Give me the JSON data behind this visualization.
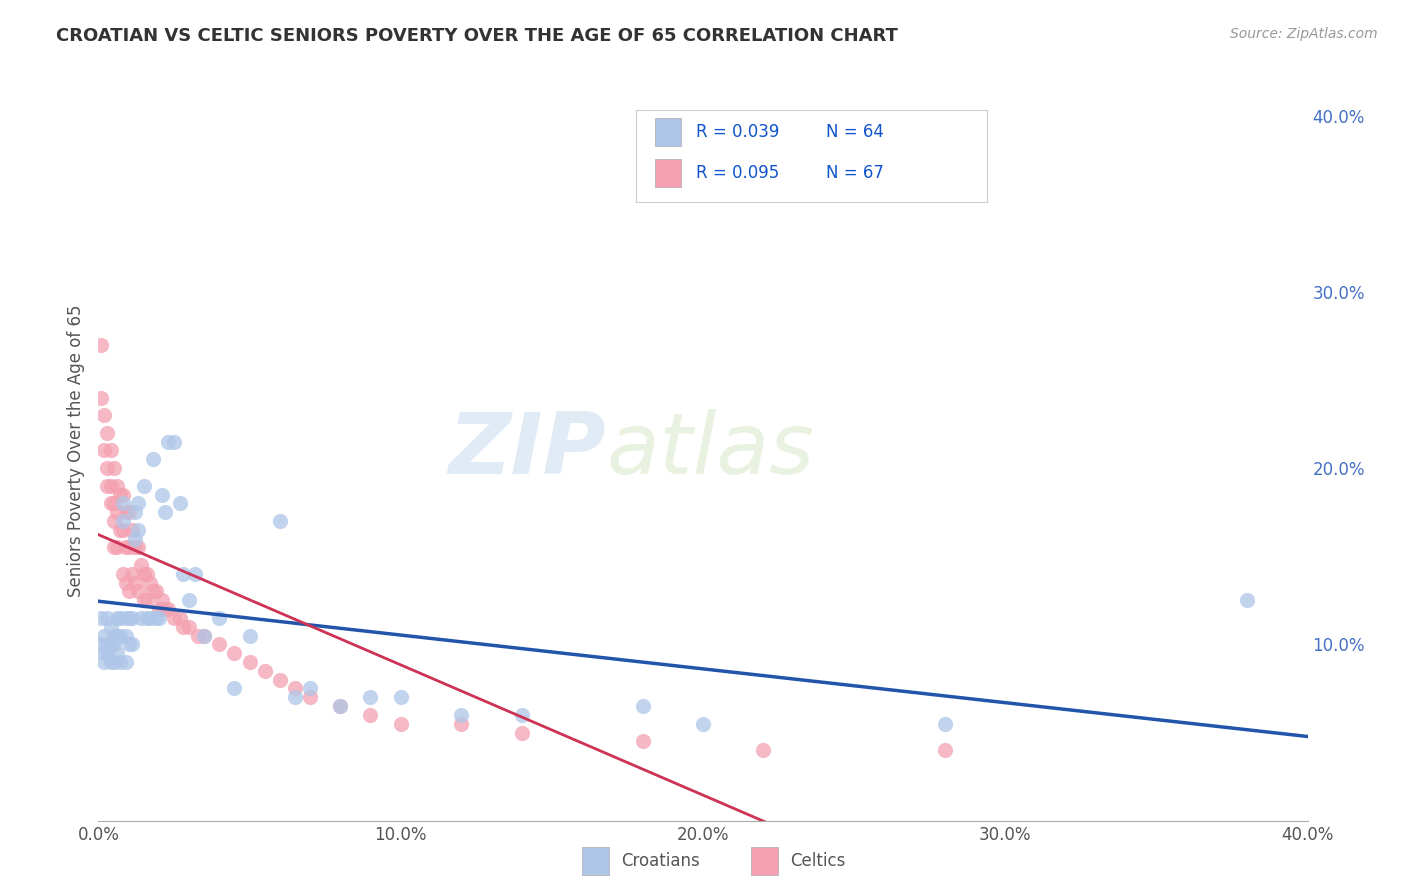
{
  "title": "CROATIAN VS CELTIC SENIORS POVERTY OVER THE AGE OF 65 CORRELATION CHART",
  "ylabel": "Seniors Poverty Over the Age of 65",
  "source_text": "Source: ZipAtlas.com",
  "watermark_zip": "ZIP",
  "watermark_atlas": "atlas",
  "xlim": [
    0.0,
    0.4
  ],
  "ylim": [
    0.0,
    0.42
  ],
  "x_ticks": [
    0.0,
    0.1,
    0.2,
    0.3,
    0.4
  ],
  "x_tick_labels": [
    "0.0%",
    "10.0%",
    "20.0%",
    "30.0%",
    "40.0%"
  ],
  "y_ticks_right": [
    0.1,
    0.2,
    0.3,
    0.4
  ],
  "y_tick_labels_right": [
    "10.0%",
    "20.0%",
    "30.0%",
    "40.0%"
  ],
  "legend_entries": [
    {
      "label_r": "R = 0.039",
      "label_n": "N = 64",
      "color": "#aec6e8"
    },
    {
      "label_r": "R = 0.095",
      "label_n": "N = 67",
      "color": "#f4a0b0"
    }
  ],
  "croatian_color": "#aec6e8",
  "celtic_color": "#f4a0b0",
  "croatian_line_color": "#2255aa",
  "celtic_line_color": "#cc3355",
  "croatian_scatter": {
    "x": [
      0.001,
      0.001,
      0.002,
      0.002,
      0.002,
      0.003,
      0.003,
      0.003,
      0.004,
      0.004,
      0.004,
      0.005,
      0.005,
      0.005,
      0.006,
      0.006,
      0.006,
      0.007,
      0.007,
      0.007,
      0.008,
      0.008,
      0.009,
      0.009,
      0.009,
      0.01,
      0.01,
      0.011,
      0.011,
      0.012,
      0.012,
      0.013,
      0.013,
      0.014,
      0.015,
      0.016,
      0.017,
      0.018,
      0.019,
      0.02,
      0.021,
      0.022,
      0.023,
      0.025,
      0.027,
      0.028,
      0.03,
      0.032,
      0.035,
      0.04,
      0.045,
      0.05,
      0.06,
      0.065,
      0.07,
      0.08,
      0.09,
      0.1,
      0.12,
      0.14,
      0.18,
      0.2,
      0.28,
      0.38
    ],
    "y": [
      0.115,
      0.1,
      0.105,
      0.095,
      0.09,
      0.115,
      0.1,
      0.095,
      0.11,
      0.1,
      0.09,
      0.105,
      0.1,
      0.09,
      0.115,
      0.105,
      0.095,
      0.115,
      0.105,
      0.09,
      0.18,
      0.17,
      0.115,
      0.105,
      0.09,
      0.115,
      0.1,
      0.115,
      0.1,
      0.175,
      0.16,
      0.18,
      0.165,
      0.115,
      0.19,
      0.115,
      0.115,
      0.205,
      0.115,
      0.115,
      0.185,
      0.175,
      0.215,
      0.215,
      0.18,
      0.14,
      0.125,
      0.14,
      0.105,
      0.115,
      0.075,
      0.105,
      0.17,
      0.07,
      0.075,
      0.065,
      0.07,
      0.07,
      0.06,
      0.06,
      0.065,
      0.055,
      0.055,
      0.125
    ]
  },
  "celtic_scatter": {
    "x": [
      0.001,
      0.001,
      0.002,
      0.002,
      0.003,
      0.003,
      0.003,
      0.004,
      0.004,
      0.004,
      0.005,
      0.005,
      0.005,
      0.005,
      0.006,
      0.006,
      0.006,
      0.007,
      0.007,
      0.008,
      0.008,
      0.008,
      0.009,
      0.009,
      0.009,
      0.01,
      0.01,
      0.01,
      0.011,
      0.011,
      0.012,
      0.012,
      0.013,
      0.013,
      0.014,
      0.015,
      0.015,
      0.016,
      0.016,
      0.017,
      0.018,
      0.019,
      0.02,
      0.021,
      0.022,
      0.023,
      0.025,
      0.027,
      0.028,
      0.03,
      0.033,
      0.035,
      0.04,
      0.045,
      0.05,
      0.055,
      0.06,
      0.065,
      0.07,
      0.08,
      0.09,
      0.1,
      0.12,
      0.14,
      0.18,
      0.22,
      0.28
    ],
    "y": [
      0.27,
      0.24,
      0.23,
      0.21,
      0.22,
      0.2,
      0.19,
      0.21,
      0.19,
      0.18,
      0.2,
      0.18,
      0.17,
      0.155,
      0.19,
      0.175,
      0.155,
      0.185,
      0.165,
      0.185,
      0.165,
      0.14,
      0.175,
      0.155,
      0.135,
      0.175,
      0.155,
      0.13,
      0.165,
      0.14,
      0.155,
      0.135,
      0.155,
      0.13,
      0.145,
      0.14,
      0.125,
      0.14,
      0.125,
      0.135,
      0.13,
      0.13,
      0.12,
      0.125,
      0.12,
      0.12,
      0.115,
      0.115,
      0.11,
      0.11,
      0.105,
      0.105,
      0.1,
      0.095,
      0.09,
      0.085,
      0.08,
      0.075,
      0.07,
      0.065,
      0.06,
      0.055,
      0.055,
      0.05,
      0.045,
      0.04,
      0.04
    ]
  }
}
